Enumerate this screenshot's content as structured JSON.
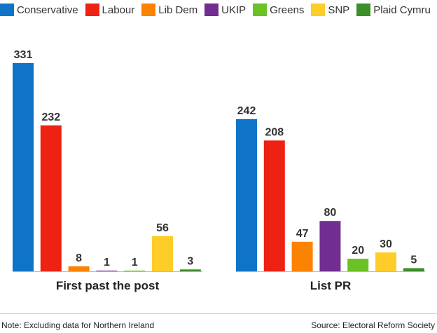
{
  "legend": [
    {
      "label": "Conservative",
      "color": "#0f74c8"
    },
    {
      "label": "Labour",
      "color": "#ee2213"
    },
    {
      "label": "Lib Dem",
      "color": "#fc8204"
    },
    {
      "label": "UKIP",
      "color": "#712d8f"
    },
    {
      "label": "Greens",
      "color": "#6ac226"
    },
    {
      "label": "SNP",
      "color": "#fecd29"
    },
    {
      "label": "Plaid Cymru",
      "color": "#3d8f29"
    }
  ],
  "chart_data": [
    {
      "type": "bar",
      "title": "First past the post",
      "categories": [
        "Conservative",
        "Labour",
        "Lib Dem",
        "UKIP",
        "Greens",
        "SNP",
        "Plaid Cymru"
      ],
      "values": [
        331,
        232,
        8,
        1,
        1,
        56,
        3
      ],
      "ylim": [
        0,
        331
      ]
    },
    {
      "type": "bar",
      "title": "List PR",
      "categories": [
        "Conservative",
        "Labour",
        "Lib Dem",
        "UKIP",
        "Greens",
        "SNP",
        "Plaid Cymru"
      ],
      "values": [
        242,
        208,
        47,
        80,
        20,
        30,
        5
      ],
      "ylim": [
        0,
        331
      ]
    }
  ],
  "footer": {
    "note": "Note: Excluding data for Northern Ireland",
    "source": "Source: Electoral Reform Society"
  }
}
